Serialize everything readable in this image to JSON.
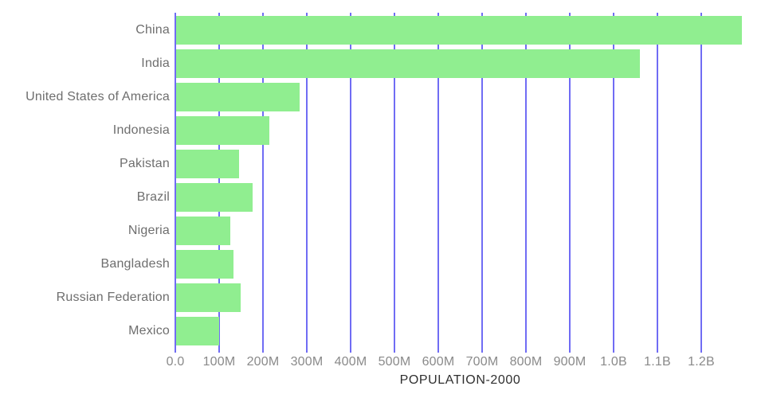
{
  "chart_data": {
    "type": "bar",
    "orientation": "horizontal",
    "title": "",
    "xlabel": "POPULATION-2000",
    "ylabel": "",
    "categories": [
      "China",
      "India",
      "United States of America",
      "Indonesia",
      "Pakistan",
      "Brazil",
      "Nigeria",
      "Bangladesh",
      "Russian Federation",
      "Mexico"
    ],
    "values_millions": [
      1290,
      1058,
      282,
      212,
      144,
      175,
      124,
      130,
      147,
      99
    ],
    "x_ticks": [
      {
        "label": "0.0",
        "value_millions": 0
      },
      {
        "label": "100M",
        "value_millions": 100
      },
      {
        "label": "200M",
        "value_millions": 200
      },
      {
        "label": "300M",
        "value_millions": 300
      },
      {
        "label": "400M",
        "value_millions": 400
      },
      {
        "label": "500M",
        "value_millions": 500
      },
      {
        "label": "600M",
        "value_millions": 600
      },
      {
        "label": "700M",
        "value_millions": 700
      },
      {
        "label": "800M",
        "value_millions": 800
      },
      {
        "label": "900M",
        "value_millions": 900
      },
      {
        "label": "1.0B",
        "value_millions": 1000
      },
      {
        "label": "1.1B",
        "value_millions": 1100
      },
      {
        "label": "1.2B",
        "value_millions": 1200
      }
    ],
    "xlim_millions": [
      0,
      1300
    ],
    "grid": true,
    "legend": "none",
    "colors": {
      "bar": "#90ee90",
      "grid": "#706cf4",
      "tick_label": "#8a8a8a",
      "category_label": "#6e6e6e",
      "axis_title": "#2f2f2f",
      "background": "#ffffff"
    }
  }
}
